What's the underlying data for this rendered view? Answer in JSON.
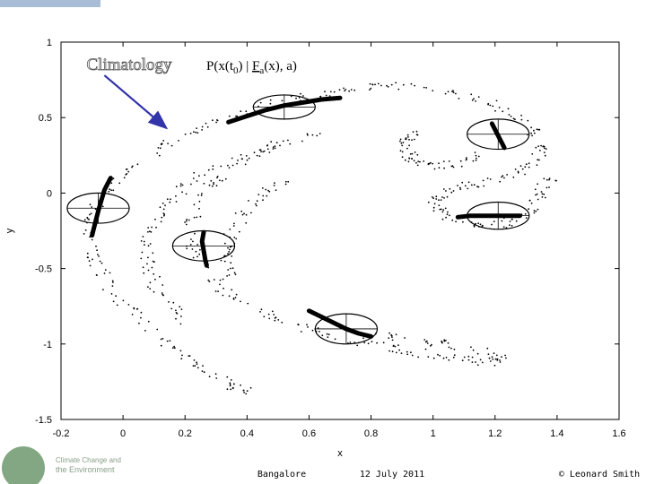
{
  "slide": {
    "footer": {
      "location": "Bangalore",
      "date": "12 July 2011",
      "author": "© Leonard Smith",
      "logo_text_line1": "Climate Change and",
      "logo_text_line2": "the Environment"
    },
    "colors": {
      "annotation_arrow": "#3333aa",
      "data_points": "#000000",
      "logo_green": "#5a8a5a"
    }
  },
  "chart_data": {
    "type": "scatter",
    "title": "",
    "xlabel": "x",
    "ylabel": "y",
    "xlim": [
      -0.2,
      1.6
    ],
    "ylim": [
      -1.5,
      1.0
    ],
    "xticks": [
      "-0.2",
      "0",
      "0.2",
      "0.4",
      "0.6",
      "0.8",
      "1",
      "1.2",
      "1.4",
      "1.6"
    ],
    "yticks": [
      "1",
      "0.5",
      "0",
      "-0.5",
      "-1",
      "-1.5"
    ],
    "grid": false,
    "annotations": {
      "climatology_label": "Climatology",
      "forecast_label_parts": {
        "prefix": "P(x(t",
        "sub0": "0",
        "middle": ") | ",
        "f": "F",
        "suba": "a",
        "suffix": "(x), a)"
      },
      "arrow_from": [
        -0.06,
        0.78
      ],
      "arrow_to": [
        0.14,
        0.43
      ]
    },
    "ellipses": [
      {
        "cx": -0.08,
        "cy": -0.1,
        "rx": 0.1,
        "ry": 0.1
      },
      {
        "cx": 0.52,
        "cy": 0.57,
        "rx": 0.1,
        "ry": 0.08
      },
      {
        "cx": 1.21,
        "cy": 0.39,
        "rx": 0.1,
        "ry": 0.1
      },
      {
        "cx": 1.21,
        "cy": -0.15,
        "rx": 0.1,
        "ry": 0.09
      },
      {
        "cx": 0.26,
        "cy": -0.35,
        "rx": 0.1,
        "ry": 0.1
      },
      {
        "cx": 0.72,
        "cy": -0.9,
        "rx": 0.1,
        "ry": 0.1
      }
    ],
    "ensemble_tracks": [
      {
        "x": [
          -0.1,
          -0.09,
          -0.08,
          -0.07,
          -0.06,
          -0.05,
          -0.04
        ],
        "y": [
          -0.28,
          -0.2,
          -0.12,
          -0.05,
          0.02,
          0.06,
          0.1
        ]
      },
      {
        "x": [
          0.34,
          0.4,
          0.46,
          0.52,
          0.58,
          0.64,
          0.7
        ],
        "y": [
          0.47,
          0.51,
          0.55,
          0.58,
          0.6,
          0.62,
          0.63
        ]
      },
      {
        "x": [
          1.19,
          1.2,
          1.21,
          1.22,
          1.23
        ],
        "y": [
          0.46,
          0.42,
          0.38,
          0.34,
          0.3
        ]
      },
      {
        "x": [
          1.08,
          1.12,
          1.16,
          1.2,
          1.24,
          1.28
        ],
        "y": [
          -0.16,
          -0.15,
          -0.15,
          -0.15,
          -0.15,
          -0.15
        ]
      },
      {
        "x": [
          0.26,
          0.255,
          0.26,
          0.265,
          0.27
        ],
        "y": [
          -0.26,
          -0.32,
          -0.38,
          -0.44,
          -0.48
        ]
      },
      {
        "x": [
          0.6,
          0.64,
          0.68,
          0.72,
          0.76,
          0.8
        ],
        "y": [
          -0.78,
          -0.82,
          -0.86,
          -0.9,
          -0.93,
          -0.95
        ]
      }
    ],
    "attractor_outer": [
      [
        0.95,
        0.71
      ],
      [
        0.85,
        0.71
      ],
      [
        0.75,
        0.69
      ],
      [
        0.65,
        0.66
      ],
      [
        0.55,
        0.62
      ],
      [
        0.45,
        0.57
      ],
      [
        0.35,
        0.51
      ],
      [
        0.25,
        0.43
      ],
      [
        0.15,
        0.33
      ],
      [
        0.06,
        0.22
      ],
      [
        -0.01,
        0.1
      ],
      [
        -0.07,
        -0.03
      ],
      [
        -0.1,
        -0.17
      ],
      [
        -0.11,
        -0.3
      ],
      [
        -0.09,
        -0.45
      ],
      [
        -0.05,
        -0.6
      ],
      [
        0.01,
        -0.75
      ],
      [
        0.08,
        -0.89
      ],
      [
        0.16,
        -1.02
      ],
      [
        0.24,
        -1.13
      ],
      [
        0.3,
        -1.22
      ],
      [
        0.36,
        -1.28
      ],
      [
        0.4,
        -1.32
      ],
      [
        0.2,
        -0.85
      ],
      [
        0.14,
        -0.73
      ],
      [
        0.1,
        -0.6
      ],
      [
        0.08,
        -0.47
      ],
      [
        0.08,
        -0.33
      ],
      [
        0.1,
        -0.2
      ],
      [
        0.14,
        -0.08
      ],
      [
        0.2,
        0.04
      ],
      [
        0.28,
        0.15
      ],
      [
        0.38,
        0.25
      ],
      [
        0.5,
        0.33
      ],
      [
        0.62,
        0.38
      ]
    ],
    "attractor_right": [
      [
        1.0,
        0.69
      ],
      [
        1.1,
        0.65
      ],
      [
        1.2,
        0.58
      ],
      [
        1.28,
        0.5
      ],
      [
        1.33,
        0.4
      ],
      [
        1.35,
        0.3
      ],
      [
        1.32,
        0.2
      ],
      [
        1.26,
        0.12
      ],
      [
        1.18,
        0.08
      ],
      [
        1.1,
        0.04
      ],
      [
        1.04,
        0.0
      ],
      [
        1.0,
        -0.05
      ],
      [
        1.02,
        -0.12
      ],
      [
        1.08,
        -0.18
      ],
      [
        1.16,
        -0.22
      ],
      [
        1.24,
        -0.2
      ],
      [
        1.3,
        -0.15
      ],
      [
        1.34,
        -0.05
      ],
      [
        1.35,
        0.02
      ],
      [
        1.38,
        0.1
      ],
      [
        0.95,
        0.42
      ],
      [
        0.92,
        0.36
      ],
      [
        0.91,
        0.3
      ],
      [
        0.92,
        0.24
      ],
      [
        0.96,
        0.2
      ],
      [
        1.02,
        0.18
      ],
      [
        1.1,
        0.2
      ],
      [
        1.14,
        0.26
      ]
    ],
    "attractor_inner": [
      [
        0.55,
        0.35
      ],
      [
        0.45,
        0.28
      ],
      [
        0.36,
        0.18
      ],
      [
        0.29,
        0.06
      ],
      [
        0.24,
        -0.08
      ],
      [
        0.22,
        -0.22
      ],
      [
        0.23,
        -0.38
      ],
      [
        0.27,
        -0.52
      ],
      [
        0.33,
        -0.65
      ],
      [
        0.41,
        -0.76
      ],
      [
        0.5,
        -0.84
      ],
      [
        0.6,
        -0.9
      ],
      [
        0.7,
        -0.96
      ],
      [
        0.8,
        -1.0
      ],
      [
        0.9,
        -1.04
      ],
      [
        1.0,
        -1.07
      ],
      [
        1.1,
        -1.1
      ],
      [
        1.18,
        -1.12
      ],
      [
        1.22,
        -1.1
      ],
      [
        1.14,
        -1.04
      ],
      [
        1.04,
        -1.0
      ],
      [
        0.92,
        -0.96
      ],
      [
        0.82,
        -0.94
      ],
      [
        0.36,
        -0.55
      ],
      [
        0.34,
        -0.45
      ],
      [
        0.34,
        -0.35
      ],
      [
        0.36,
        -0.22
      ],
      [
        0.4,
        -0.1
      ],
      [
        0.46,
        0.0
      ],
      [
        0.54,
        0.08
      ]
    ]
  }
}
